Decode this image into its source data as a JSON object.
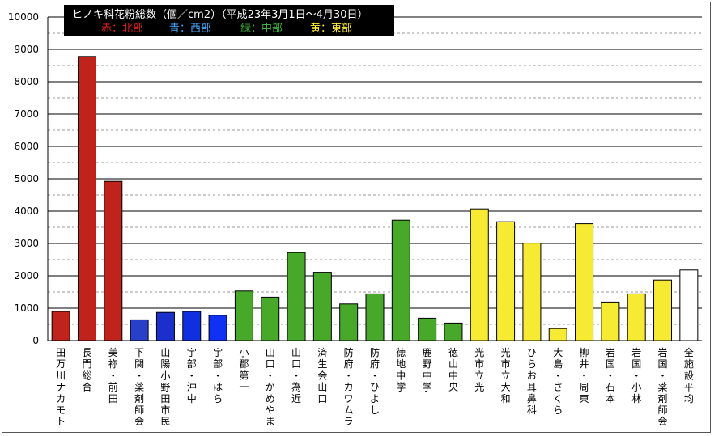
{
  "chart_data": {
    "type": "bar",
    "title": "ヒノキ科花粉総数（個／cm2）（平成23年3月1日〜4月30日）",
    "legend": [
      {
        "label": "赤：北部",
        "color": "#e02020"
      },
      {
        "label": "青：西部",
        "color": "#4aa8ff"
      },
      {
        "label": "緑：中部",
        "color": "#40b040"
      },
      {
        "label": "黄：東部",
        "color": "#ffee33"
      }
    ],
    "ylim": [
      0,
      10000
    ],
    "yticks": [
      0,
      1000,
      2000,
      3000,
      4000,
      5000,
      6000,
      7000,
      8000,
      9000,
      10000
    ],
    "grid": "solid major, dashed minor",
    "categories": [
      "田万川ナカモト",
      "長門総合",
      "美祢・前田",
      "下関・薬剤師会",
      "山陽小野田市民",
      "宇部・沖中",
      "宇部・はら",
      "小郡第一",
      "山口・かめやま",
      "山口・為近",
      "済生会山口",
      "防府・カワムラ",
      "防府・ひよし",
      "徳地中学",
      "鹿野中学",
      "徳山中央",
      "光市立光",
      "光市立大和",
      "ひらお耳鼻科",
      "大島・さくら",
      "柳井・周東",
      "岩国・石本",
      "岩国・小林",
      "岩国・薬剤師会",
      "全施設平均"
    ],
    "values": [
      900,
      8780,
      4920,
      640,
      870,
      900,
      780,
      1530,
      1340,
      2720,
      2110,
      1130,
      1440,
      3720,
      690,
      540,
      4070,
      3670,
      3010,
      370,
      3610,
      1190,
      1440,
      1870,
      2180
    ],
    "colors": [
      "#c0221c",
      "#c0221c",
      "#c0221c",
      "#2a3fc9",
      "#1a2fcc",
      "#1030e0",
      "#1030f4",
      "#48a82a",
      "#48a82a",
      "#48a82a",
      "#48a82a",
      "#48a82a",
      "#48a82a",
      "#48a82a",
      "#48a82a",
      "#48a82a",
      "#f6ea33",
      "#f6ea33",
      "#f6ea33",
      "#f6ea33",
      "#f6ea33",
      "#f6ea33",
      "#f6ea33",
      "#f6ea33",
      "#ffffff"
    ]
  }
}
